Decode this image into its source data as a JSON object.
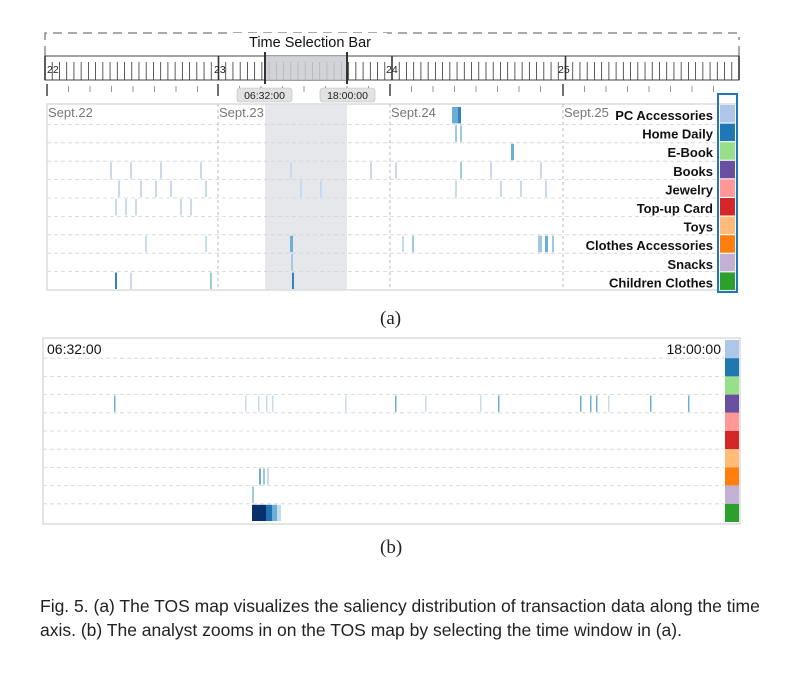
{
  "figure_a": {
    "selection_bar_title": "Time Selection Bar",
    "day_ticks": [
      "22",
      "23",
      "24",
      "25"
    ],
    "window_start_label": "06:32:00",
    "window_end_label": "18:00:00",
    "date_labels": [
      "Sept.22",
      "Sept.23",
      "Sept.24",
      "Sept.25"
    ],
    "categories": [
      "PC Accessories",
      "Home Daily",
      "E-Book",
      "Books",
      "Jewelry",
      "Top-up Card",
      "Toys",
      "Clothes Accessories",
      "Snacks",
      "Children Clothes"
    ],
    "category_colors": [
      "#aec7e8",
      "#1f77b4",
      "#98df8a",
      "#6a4fa0",
      "#ff9896",
      "#d62728",
      "#ffbb78",
      "#ff7f0e",
      "#c5b0d5",
      "#2ca02c"
    ],
    "caption": "(a)"
  },
  "figure_b": {
    "start_label": "06:32:00",
    "end_label": "18:00:00",
    "caption": "(b)"
  },
  "figure_caption": "Fig. 5. (a) The TOS map visualizes the saliency distribution of transaction data along the time axis. (b) The analyst zooms in on the TOS map by selecting the time window in (a)."
}
